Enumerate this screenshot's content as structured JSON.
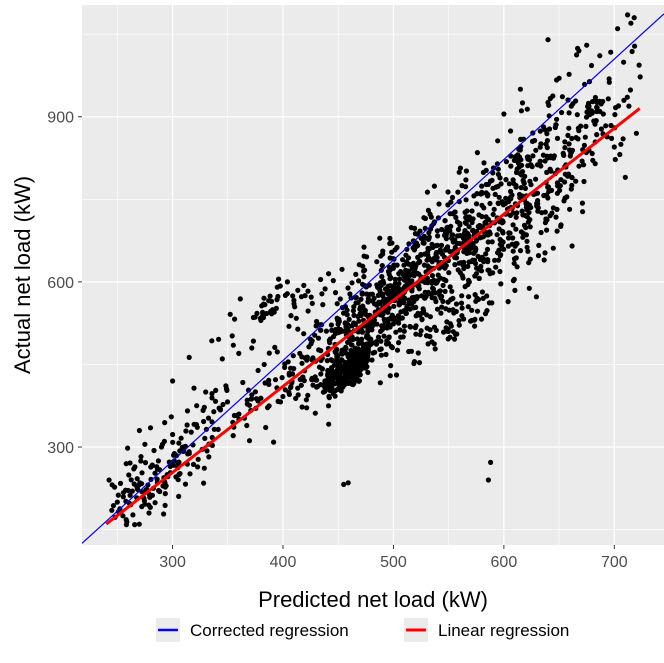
{
  "chart_data": {
    "type": "scatter",
    "title": "",
    "xlabel": "Predicted net load (kW)",
    "ylabel": "Actual net load (kW)",
    "xlim": [
      218,
      745
    ],
    "ylim": [
      122,
      1103
    ],
    "x_ticks": [
      300,
      400,
      500,
      600,
      700
    ],
    "y_ticks": [
      300,
      600,
      900
    ],
    "x_tick_labels": [
      "300",
      "400",
      "500",
      "600",
      "700"
    ],
    "y_tick_labels": [
      "300",
      "600",
      "900"
    ],
    "grid": true,
    "legend_position": "bottom",
    "lines": [
      {
        "name": "Corrected regression",
        "color": "#0000FF",
        "x": [
          218,
          745
        ],
        "y": [
          125,
          1087
        ]
      },
      {
        "name": "Linear regression",
        "color": "#FF0000",
        "x": [
          240,
          723
        ],
        "y": [
          160,
          915
        ]
      }
    ],
    "point_color": "#000000",
    "clusters": [
      {
        "cx": 460,
        "cy": 440,
        "sx": 12,
        "sy": 30,
        "n": 220
      },
      {
        "cx": 470,
        "cy": 500,
        "sx": 30,
        "sy": 50,
        "n": 260
      },
      {
        "cx": 520,
        "cy": 620,
        "sx": 45,
        "sy": 70,
        "n": 420
      },
      {
        "cx": 590,
        "cy": 700,
        "sx": 50,
        "sy": 110,
        "n": 420
      },
      {
        "cx": 660,
        "cy": 880,
        "sx": 35,
        "sy": 90,
        "n": 150
      },
      {
        "cx": 340,
        "cy": 340,
        "sx": 55,
        "sy": 70,
        "n": 160
      },
      {
        "cx": 280,
        "cy": 230,
        "sx": 20,
        "sy": 45,
        "n": 80
      },
      {
        "cx": 390,
        "cy": 560,
        "sx": 25,
        "sy": 30,
        "n": 45
      },
      {
        "cx": 545,
        "cy": 520,
        "sx": 20,
        "sy": 35,
        "n": 60
      }
    ],
    "points": [
      [
        245,
        185
      ],
      [
        250,
        200
      ],
      [
        255,
        175
      ],
      [
        258,
        168
      ],
      [
        262,
        195
      ],
      [
        270,
        330
      ],
      [
        275,
        305
      ],
      [
        280,
        335
      ],
      [
        290,
        300
      ],
      [
        300,
        420
      ],
      [
        310,
        300
      ],
      [
        330,
        400
      ],
      [
        345,
        460
      ],
      [
        355,
        485
      ],
      [
        360,
        470
      ],
      [
        380,
        530
      ],
      [
        392,
        545
      ],
      [
        396,
        605
      ],
      [
        404,
        600
      ],
      [
        410,
        560
      ],
      [
        420,
        575
      ],
      [
        430,
        520
      ],
      [
        455,
        232
      ],
      [
        459,
        235
      ],
      [
        586,
        240
      ],
      [
        588,
        272
      ],
      [
        600,
        905
      ],
      [
        615,
        950
      ],
      [
        640,
        1040
      ],
      [
        650,
        970
      ],
      [
        675,
        1030
      ],
      [
        712,
        1085
      ],
      [
        718,
        1080
      ],
      [
        715,
        1070
      ],
      [
        703,
        1060
      ],
      [
        708,
        860
      ],
      [
        706,
        850
      ],
      [
        700,
        845
      ],
      [
        690,
        905
      ],
      [
        720,
        870
      ],
      [
        710,
        790
      ]
    ]
  },
  "legend": {
    "items": [
      {
        "label": "Corrected regression",
        "color": "#0000FF"
      },
      {
        "label": "Linear regression",
        "color": "#FF0000"
      }
    ]
  }
}
